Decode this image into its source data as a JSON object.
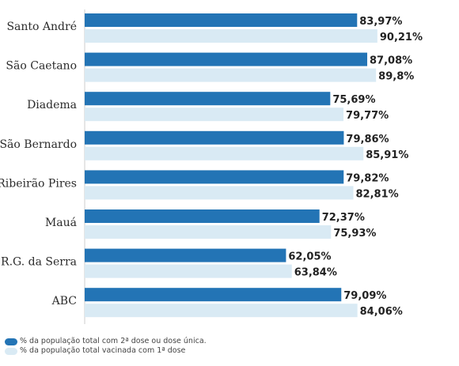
{
  "chart_data": {
    "type": "bar",
    "orientation": "horizontal",
    "categories": [
      "Santo André",
      "São Caetano",
      "Diadema",
      "São Bernardo",
      "Ribeirão Pires",
      "Mauá",
      "R.G. da Serra",
      "ABC"
    ],
    "series": [
      {
        "name": "% da população total com 2ª dose ou dose única.",
        "color": "#2374b5",
        "values": [
          83.97,
          87.08,
          75.69,
          79.86,
          79.82,
          72.37,
          62.05,
          79.09
        ],
        "labels": [
          "83,97%",
          "87,08%",
          "75,69%",
          "79,86%",
          "79,82%",
          "72,37%",
          "62,05%",
          "79,09%"
        ]
      },
      {
        "name": "% da população total vacinada com 1ª dose",
        "color": "#d9eaf4",
        "values": [
          90.21,
          89.8,
          79.77,
          85.91,
          82.81,
          75.93,
          63.84,
          84.06
        ],
        "labels": [
          "90,21%",
          "89,8%",
          "79,77%",
          "85,91%",
          "82,81%",
          "75,93%",
          "63,84%",
          "84,06%"
        ]
      }
    ],
    "title": "",
    "xlabel": "",
    "ylabel": "",
    "xlim": [
      0,
      100
    ],
    "grid": false,
    "legend_position": "bottom-left"
  }
}
